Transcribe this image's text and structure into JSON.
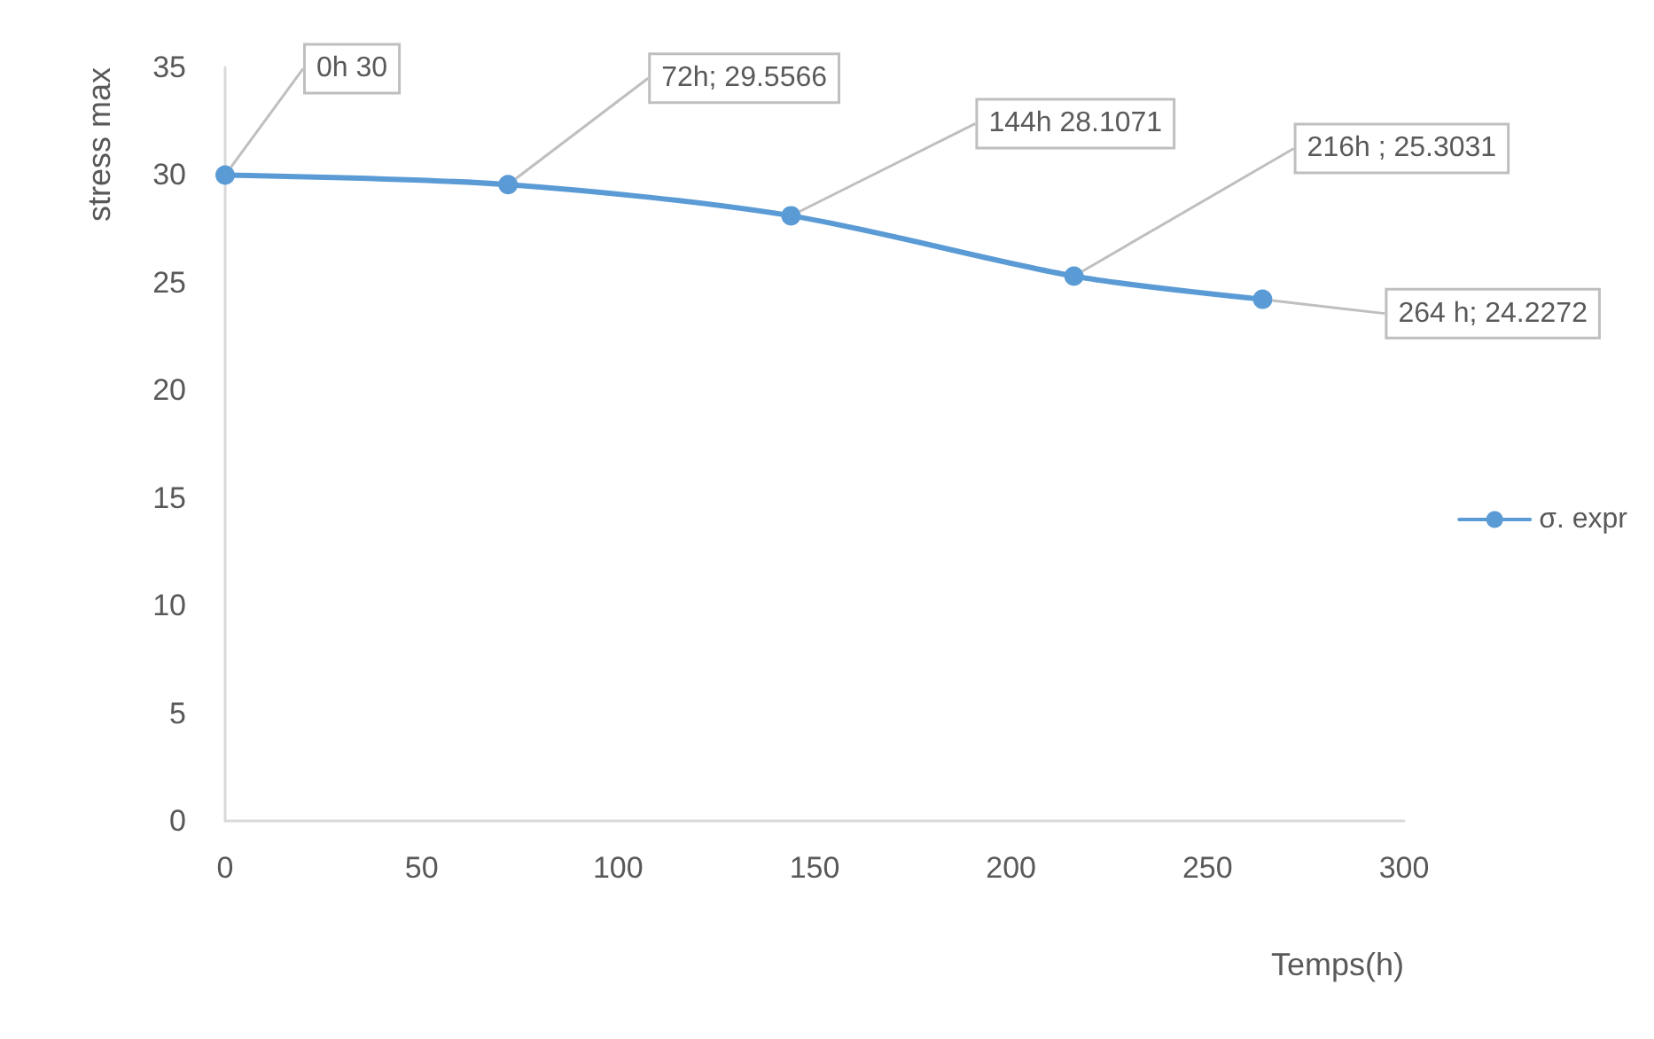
{
  "chart_data": {
    "type": "line",
    "xlabel": "Temps(h)",
    "ylabel": "stress max",
    "x": [
      0,
      72,
      144,
      216,
      264
    ],
    "series": [
      {
        "name": "σ. expr",
        "color": "#5b9bd5",
        "values": [
          30,
          29.5566,
          28.1071,
          25.3031,
          24.2272
        ],
        "value_labels": [
          "0h 30",
          "72h; 29.5566",
          "144h 28.1071",
          "216h ; 25.3031",
          "264 h; 24.2272"
        ]
      }
    ],
    "xlim": [
      0,
      300
    ],
    "xticks": [
      0,
      50,
      100,
      150,
      200,
      250,
      300
    ],
    "ylim": [
      0,
      35
    ],
    "yticks": [
      0,
      5,
      10,
      15,
      20,
      25,
      30,
      35
    ],
    "grid": false,
    "legend": "right",
    "marker": "circle",
    "line_style": "solid"
  }
}
